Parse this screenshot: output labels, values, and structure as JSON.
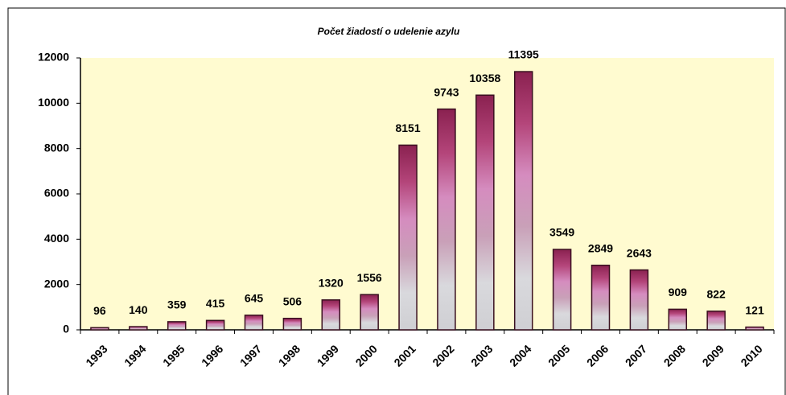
{
  "chart_data": {
    "type": "bar",
    "title": "Počet žiadostí o udelenie azylu",
    "categories": [
      "1993",
      "1994",
      "1995",
      "1996",
      "1997",
      "1998",
      "1999",
      "2000",
      "2001",
      "2002",
      "2003",
      "2004",
      "2005",
      "2006",
      "2007",
      "2008",
      "2009",
      "2010"
    ],
    "values": [
      96,
      140,
      359,
      415,
      645,
      506,
      1320,
      1556,
      8151,
      9743,
      10358,
      11395,
      3549,
      2849,
      2643,
      909,
      822,
      121
    ],
    "gradient": [
      "#8a2150",
      "#b4457a",
      "#d58cbf",
      "#c9a0b8",
      "#d9d9dd",
      "#cfcfd3"
    ],
    "ylim": [
      0,
      12000
    ],
    "yticks": [
      0,
      2000,
      4000,
      6000,
      8000,
      10000,
      12000
    ],
    "grid": false
  }
}
